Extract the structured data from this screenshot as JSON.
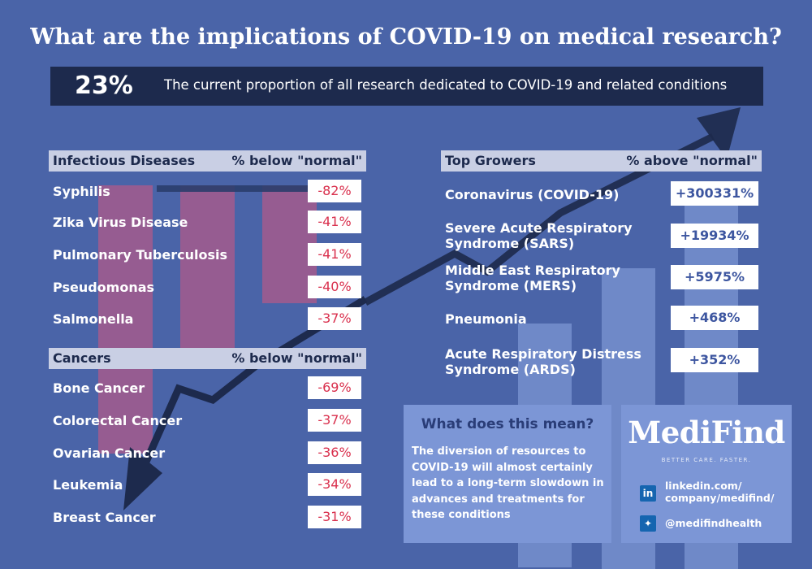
{
  "title": "What are the implications of COVID-19 on medical research?",
  "stat": {
    "value": "23%",
    "text": "The current proportion of all research dedicated to COVID-19 and related conditions"
  },
  "infectious": {
    "header_left": "Infectious Diseases",
    "header_right": "% below \"normal\"",
    "rows": [
      {
        "label": "Syphilis",
        "value": "-82%"
      },
      {
        "label": "Zika Virus Disease",
        "value": "-41%"
      },
      {
        "label": "Pulmonary Tuberculosis",
        "value": "-41%"
      },
      {
        "label": "Pseudomonas",
        "value": "-40%"
      },
      {
        "label": "Salmonella",
        "value": "-37%"
      }
    ]
  },
  "cancers": {
    "header_left": "Cancers",
    "header_right": "% below \"normal\"",
    "rows": [
      {
        "label": "Bone Cancer",
        "value": "-69%"
      },
      {
        "label": "Colorectal Cancer",
        "value": "-37%"
      },
      {
        "label": "Ovarian Cancer",
        "value": "-36%"
      },
      {
        "label": "Leukemia",
        "value": "-34%"
      },
      {
        "label": "Breast Cancer",
        "value": "-31%"
      }
    ]
  },
  "growers": {
    "header_left": "Top Growers",
    "header_right": "% above \"normal\"",
    "rows": [
      {
        "line1": "Coronavirus (COVID-19)",
        "line2": "",
        "value": "+300331%"
      },
      {
        "line1": "Severe Acute Respiratory",
        "line2": "Syndrome (SARS)",
        "value": "+19934%"
      },
      {
        "line1": "Middle East Respiratory",
        "line2": "Syndrome (MERS)",
        "value": "+5975%"
      },
      {
        "line1": "Pneumonia",
        "line2": "",
        "value": "+468%"
      },
      {
        "line1": "Acute Respiratory Distress",
        "line2": "Syndrome (ARDS)",
        "value": "+352%"
      }
    ]
  },
  "meaning": {
    "title": "What does this mean?",
    "text": "The diversion of resources to COVID-19 will almost certainly lead to a long-term slowdown in advances and treatments for these conditions"
  },
  "brand": {
    "logo": "MediFind",
    "tagline": "BETTER CARE. FASTER.",
    "linkedin_line1": "linkedin.com/",
    "linkedin_line2": "company/medifind/",
    "twitter": "@medifindhealth"
  },
  "colors": {
    "background": "#4a64a8",
    "dark": "#1d2a4d",
    "negative": "#d9304d",
    "positive": "#3d56a0",
    "panel": "#7c96d6"
  },
  "icons": {
    "linkedin": "linkedin-icon",
    "twitter": "twitter-icon",
    "arrow_down": "arrow-down-icon",
    "arrow_up": "arrow-up-icon"
  }
}
